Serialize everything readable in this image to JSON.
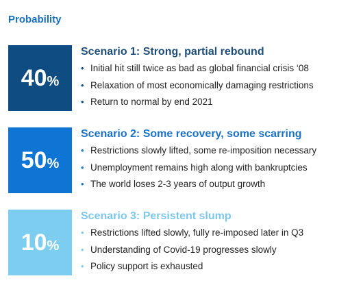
{
  "header": {
    "title": "Probability"
  },
  "scenarios": [
    {
      "number": "40",
      "unit": "%",
      "color": "#0f4c81",
      "title_color": "#1f4e79",
      "title": "Scenario 1: Strong, partial rebound",
      "bullets": [
        "Initial hit still twice as bad as global financial crisis ‘08",
        "Relaxation of most economically damaging restrictions",
        "Return to normal by end 2021"
      ]
    },
    {
      "number": "50",
      "unit": "%",
      "color": "#0f75d4",
      "title_color": "#1a73c9",
      "title": "Scenario 2: Some recovery, some scarring",
      "bullets": [
        "Restrictions slowly lifted, some re-imposition necessary",
        "Unemployment remains high along with bankruptcies",
        "The world loses 2-3 years of output growth"
      ]
    },
    {
      "number": "10",
      "unit": "%",
      "color": "#7dcdf0",
      "title_color": "#7cc8ea",
      "title": "Scenario 3: Persistent slump",
      "bullets": [
        "Restrictions lifted slowly, fully re-imposed later in Q3",
        "Understanding of Covid-19 progresses slowly",
        "Policy support is exhausted"
      ]
    }
  ]
}
